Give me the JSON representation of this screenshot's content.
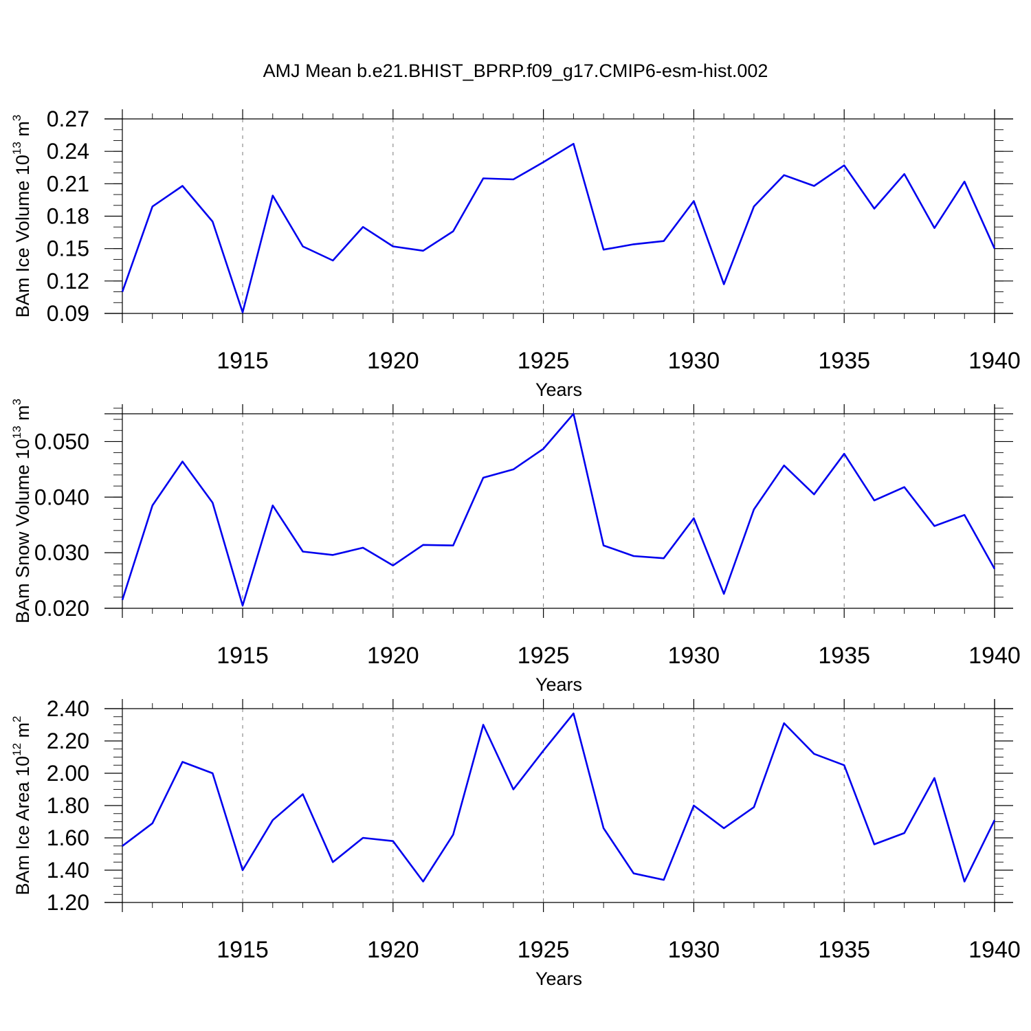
{
  "title": "AMJ Mean b.e21.BHIST_BPRP.f09_g17.CMIP6-esm-hist.002",
  "colors": {
    "series": "#0000ee",
    "grid": "#777777",
    "axis": "#000000",
    "background": "#ffffff"
  },
  "chart_data": [
    {
      "type": "line",
      "ylabel_main": "BAm Ice Volume 10",
      "ylabel_exp": "13",
      "ylabel_unit": " m",
      "ylabel_unit_exp": "3",
      "xlabel": "Years",
      "xlim": [
        1911,
        1940
      ],
      "ylim": [
        0.09,
        0.27
      ],
      "yticks": [
        0.09,
        0.12,
        0.15,
        0.18,
        0.21,
        0.24,
        0.27
      ],
      "ytick_labels": [
        "0.09",
        "0.12",
        "0.15",
        "0.18",
        "0.21",
        "0.24",
        "0.27"
      ],
      "yminor": 0.01,
      "xticks": [
        1915,
        1920,
        1925,
        1930,
        1935,
        1940
      ],
      "xtick_labels": [
        "1915",
        "1920",
        "1925",
        "1930",
        "1935",
        "1940"
      ],
      "grid": "x-dashed",
      "x": [
        1911,
        1912,
        1913,
        1914,
        1915,
        1916,
        1917,
        1918,
        1919,
        1920,
        1921,
        1922,
        1923,
        1924,
        1925,
        1926,
        1927,
        1928,
        1929,
        1930,
        1931,
        1932,
        1933,
        1934,
        1935,
        1936,
        1937,
        1938,
        1939,
        1940
      ],
      "values": [
        0.11,
        0.189,
        0.208,
        0.175,
        0.091,
        0.199,
        0.152,
        0.139,
        0.17,
        0.152,
        0.148,
        0.166,
        0.215,
        0.214,
        0.23,
        0.247,
        0.149,
        0.154,
        0.157,
        0.194,
        0.117,
        0.189,
        0.218,
        0.208,
        0.227,
        0.187,
        0.219,
        0.169,
        0.212,
        0.15
      ]
    },
    {
      "type": "line",
      "ylabel_main": "BAm Snow Volume 10",
      "ylabel_exp": "13",
      "ylabel_unit": " m",
      "ylabel_unit_exp": "3",
      "xlabel": "Years",
      "xlim": [
        1911,
        1940
      ],
      "ylim": [
        0.02,
        0.055
      ],
      "yticks": [
        0.02,
        0.03,
        0.04,
        0.05
      ],
      "ytick_labels": [
        "0.020",
        "0.030",
        "0.040",
        "0.050"
      ],
      "yminor": 0.002,
      "xticks": [
        1915,
        1920,
        1925,
        1930,
        1935,
        1940
      ],
      "xtick_labels": [
        "1915",
        "1920",
        "1925",
        "1930",
        "1935",
        "1940"
      ],
      "grid": "x-dashed",
      "x": [
        1911,
        1912,
        1913,
        1914,
        1915,
        1916,
        1917,
        1918,
        1919,
        1920,
        1921,
        1922,
        1923,
        1924,
        1925,
        1926,
        1927,
        1928,
        1929,
        1930,
        1931,
        1932,
        1933,
        1934,
        1935,
        1936,
        1937,
        1938,
        1939,
        1940
      ],
      "values": [
        0.0215,
        0.0385,
        0.0464,
        0.039,
        0.0205,
        0.0385,
        0.0302,
        0.0296,
        0.0309,
        0.0277,
        0.0314,
        0.0313,
        0.0435,
        0.045,
        0.0487,
        0.055,
        0.0313,
        0.0294,
        0.029,
        0.0362,
        0.0226,
        0.0378,
        0.0457,
        0.0405,
        0.0478,
        0.0394,
        0.0418,
        0.0348,
        0.0368,
        0.0271
      ]
    },
    {
      "type": "line",
      "ylabel_main": "BAm Ice Area 10",
      "ylabel_exp": "12",
      "ylabel_unit": " m",
      "ylabel_unit_exp": "2",
      "xlabel": "Years",
      "xlim": [
        1911,
        1940
      ],
      "ylim": [
        1.2,
        2.4
      ],
      "yticks": [
        1.2,
        1.4,
        1.6,
        1.8,
        2.0,
        2.2,
        2.4
      ],
      "ytick_labels": [
        "1.20",
        "1.40",
        "1.60",
        "1.80",
        "2.00",
        "2.20",
        "2.40"
      ],
      "yminor": 0.05,
      "xticks": [
        1915,
        1920,
        1925,
        1930,
        1935,
        1940
      ],
      "xtick_labels": [
        "1915",
        "1920",
        "1925",
        "1930",
        "1935",
        "1940"
      ],
      "grid": "x-dashed",
      "x": [
        1911,
        1912,
        1913,
        1914,
        1915,
        1916,
        1917,
        1918,
        1919,
        1920,
        1921,
        1922,
        1923,
        1924,
        1925,
        1926,
        1927,
        1928,
        1929,
        1930,
        1931,
        1932,
        1933,
        1934,
        1935,
        1936,
        1937,
        1938,
        1939,
        1940
      ],
      "values": [
        1.55,
        1.69,
        2.07,
        2.0,
        1.4,
        1.71,
        1.87,
        1.45,
        1.6,
        1.58,
        1.33,
        1.62,
        2.3,
        1.9,
        2.14,
        2.37,
        1.66,
        1.38,
        1.34,
        1.8,
        1.66,
        1.79,
        2.31,
        2.12,
        2.05,
        1.56,
        1.63,
        1.97,
        1.33,
        1.71
      ]
    }
  ]
}
